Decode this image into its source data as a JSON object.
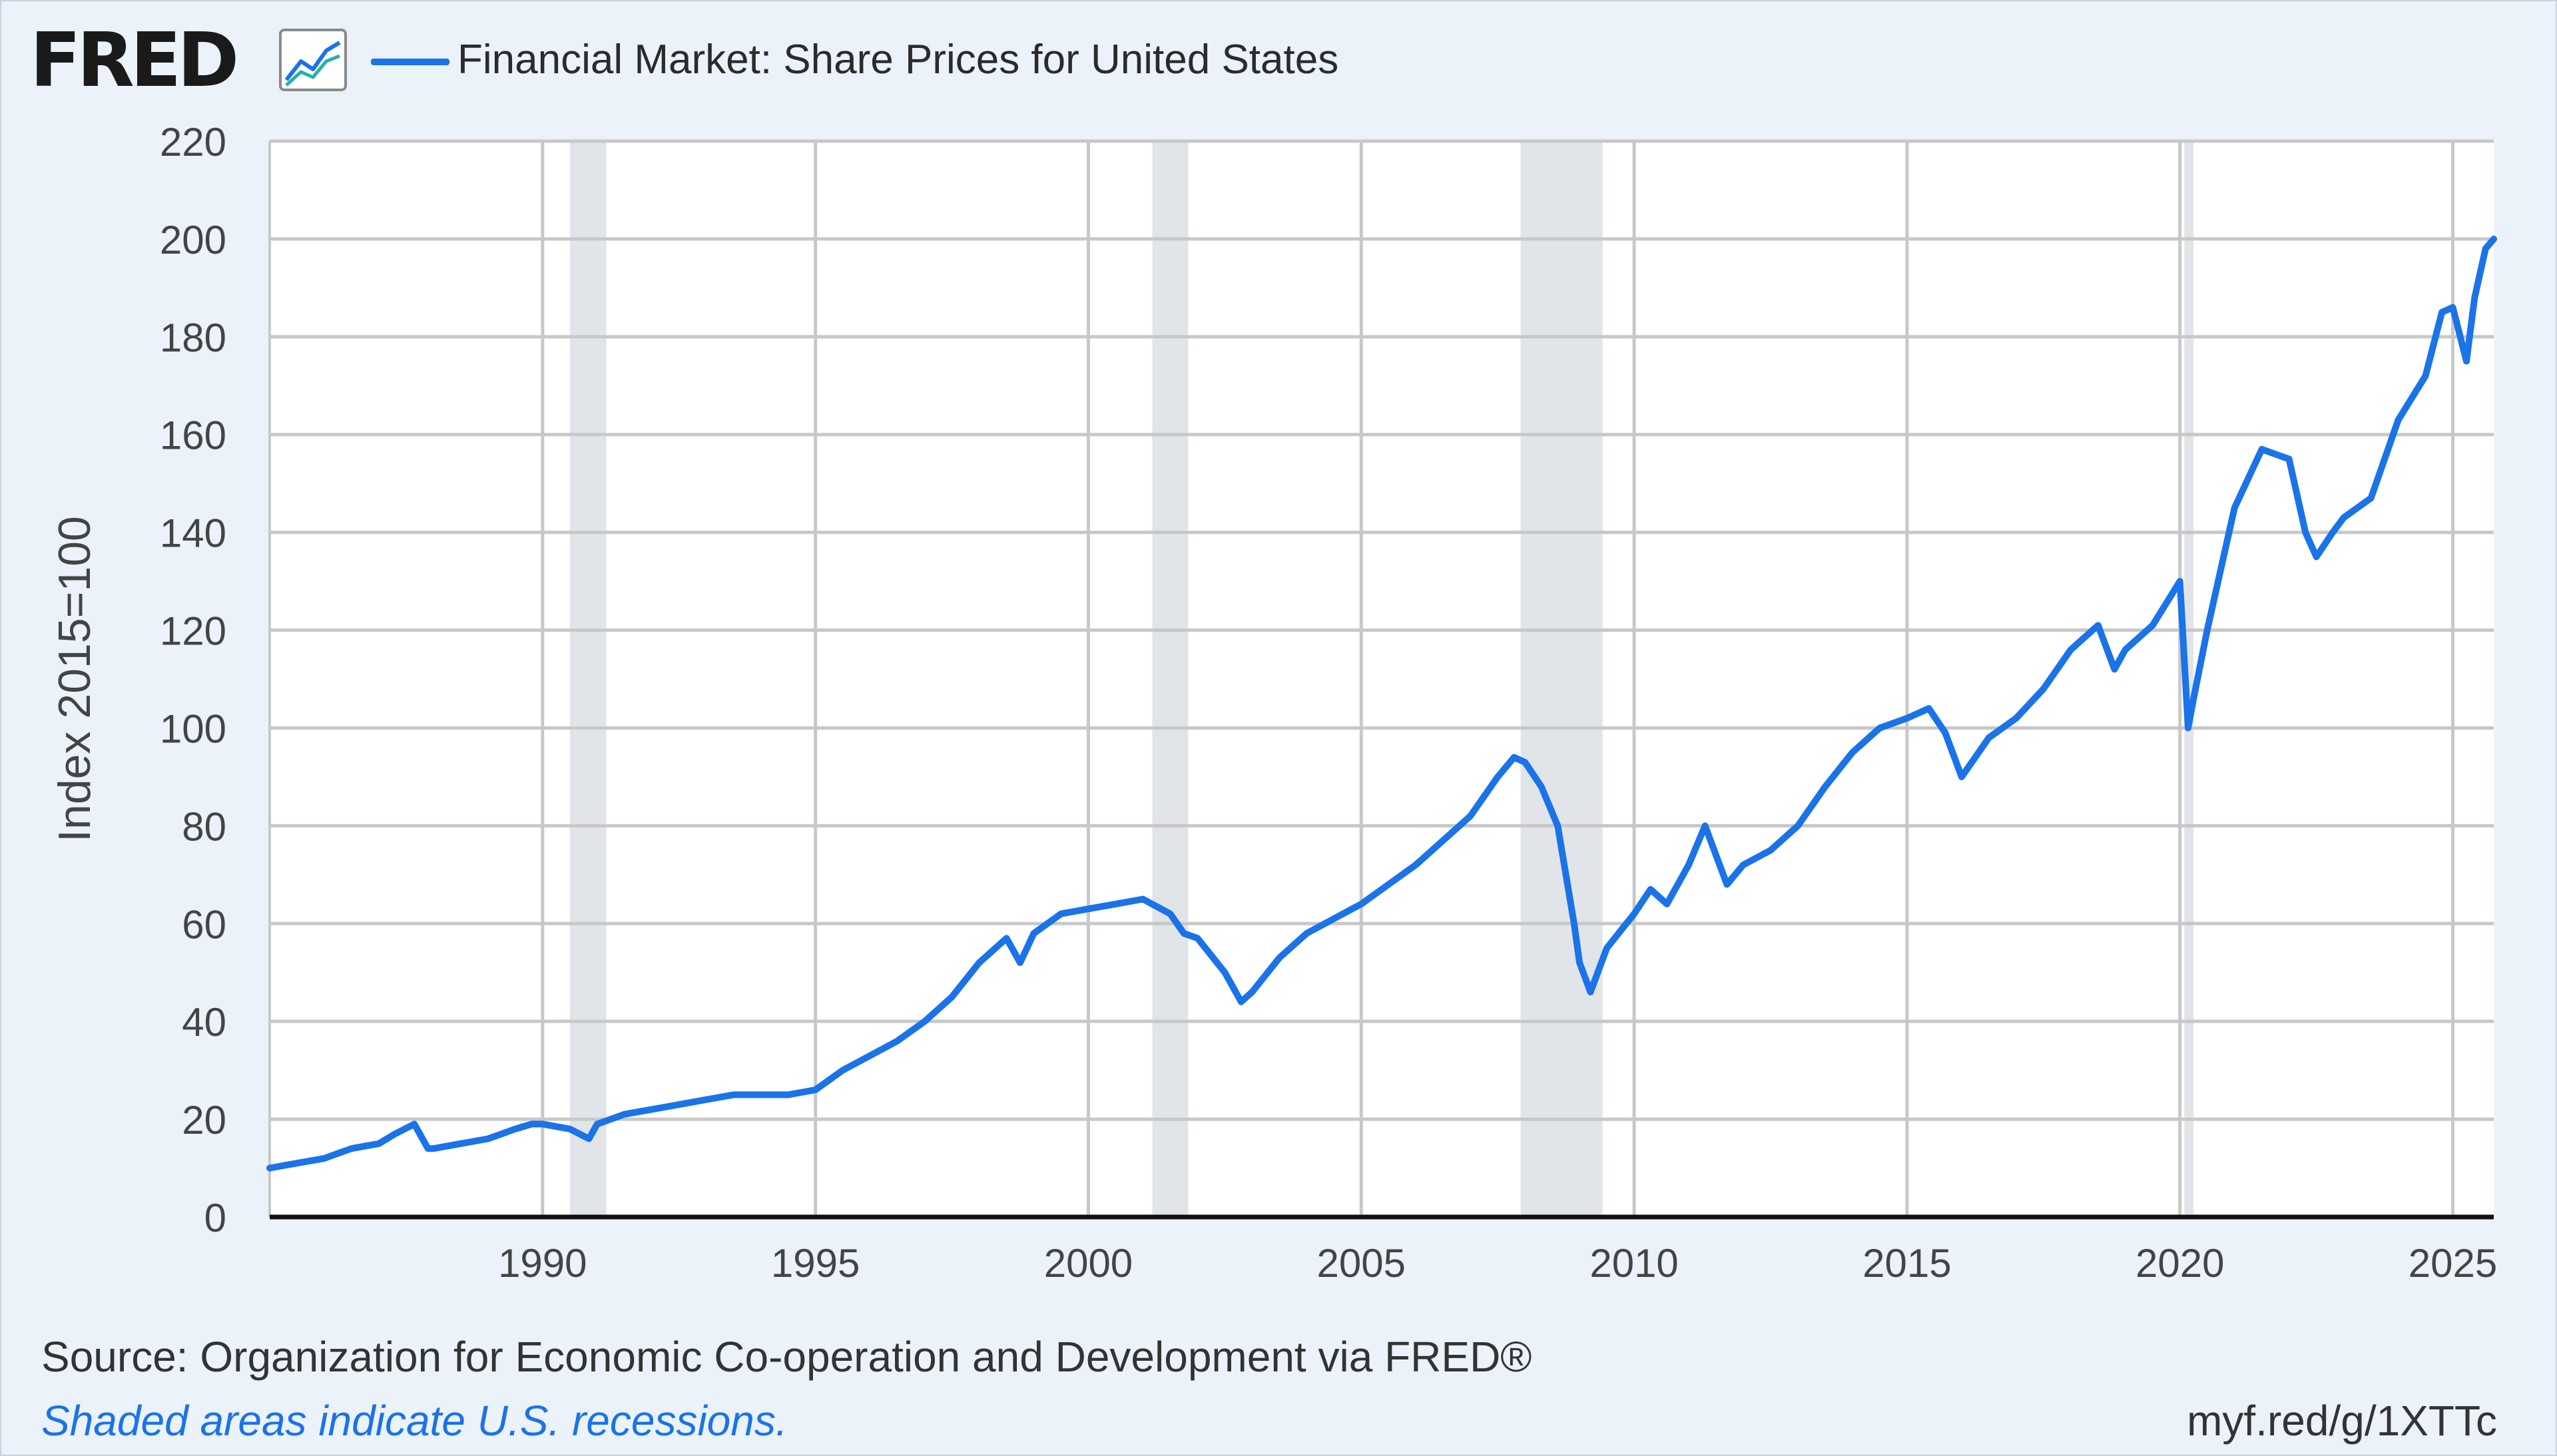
{
  "header": {
    "logo_text": "FRED",
    "logo_icon": "trend-line-chart-icon",
    "series_label": "Financial Market: Share Prices for United States"
  },
  "colors": {
    "series": "#1a73e8",
    "recession_shade": "#e1e5ea",
    "grid": "#c8c8c8",
    "background": "#ebf2fa",
    "plot_background": "#ffffff"
  },
  "footer": {
    "source": "Source: Organization for Economic Co-operation and Development via FRED®",
    "note": "Shaded areas indicate U.S. recessions.",
    "short_url": "myf.red/g/1XTTc"
  },
  "chart_data": {
    "type": "line",
    "title": "",
    "xlabel": "",
    "ylabel": "Index 2015=100",
    "xlim": [
      1985.0,
      2025.75
    ],
    "ylim": [
      0,
      220
    ],
    "yticks": [
      0,
      20,
      40,
      60,
      80,
      100,
      120,
      140,
      160,
      180,
      200,
      220
    ],
    "xticks": [
      1990,
      1995,
      2000,
      2005,
      2010,
      2015,
      2020,
      2025
    ],
    "grid": true,
    "legend_position": "top-left",
    "recessions": [
      [
        1990.5,
        1991.17
      ],
      [
        2001.17,
        2001.83
      ],
      [
        2007.92,
        2009.42
      ],
      [
        2020.08,
        2020.25
      ]
    ],
    "series": [
      {
        "name": "Financial Market: Share Prices for United States",
        "x": [
          1985.0,
          1985.5,
          1986.0,
          1986.5,
          1987.0,
          1987.3,
          1987.65,
          1987.9,
          1988.0,
          1988.5,
          1989.0,
          1989.5,
          1989.8,
          1990.0,
          1990.5,
          1990.85,
          1991.0,
          1991.5,
          1992.0,
          1992.5,
          1993.0,
          1993.5,
          1994.0,
          1994.5,
          1995.0,
          1995.5,
          1996.0,
          1996.5,
          1997.0,
          1997.5,
          1998.0,
          1998.5,
          1998.75,
          1999.0,
          1999.5,
          2000.0,
          2000.5,
          2001.0,
          2001.5,
          2001.75,
          2002.0,
          2002.5,
          2002.8,
          2003.0,
          2003.5,
          2004.0,
          2004.5,
          2005.0,
          2005.5,
          2006.0,
          2006.5,
          2007.0,
          2007.5,
          2007.8,
          2008.0,
          2008.3,
          2008.6,
          2008.9,
          2009.0,
          2009.2,
          2009.5,
          2010.0,
          2010.3,
          2010.6,
          2011.0,
          2011.3,
          2011.7,
          2012.0,
          2012.5,
          2013.0,
          2013.5,
          2014.0,
          2014.5,
          2015.0,
          2015.4,
          2015.7,
          2016.0,
          2016.5,
          2017.0,
          2017.5,
          2018.0,
          2018.5,
          2018.8,
          2019.0,
          2019.5,
          2020.0,
          2020.15,
          2020.25,
          2020.5,
          2021.0,
          2021.5,
          2022.0,
          2022.3,
          2022.5,
          2022.8,
          2023.0,
          2023.5,
          2024.0,
          2024.5,
          2024.8,
          2025.0,
          2025.25,
          2025.4,
          2025.6,
          2025.75
        ],
        "values": [
          10,
          11,
          12,
          14,
          15,
          17,
          19,
          14,
          14,
          15,
          16,
          18,
          19,
          19,
          18,
          16,
          19,
          21,
          22,
          23,
          24,
          25,
          25,
          25,
          26,
          30,
          33,
          36,
          40,
          45,
          52,
          57,
          52,
          58,
          62,
          63,
          64,
          65,
          62,
          58,
          57,
          50,
          44,
          46,
          53,
          58,
          61,
          64,
          68,
          72,
          77,
          82,
          90,
          94,
          93,
          88,
          80,
          60,
          52,
          46,
          55,
          62,
          67,
          64,
          72,
          80,
          68,
          72,
          75,
          80,
          88,
          95,
          100,
          102,
          104,
          99,
          90,
          98,
          102,
          108,
          116,
          121,
          112,
          116,
          121,
          130,
          100,
          106,
          120,
          145,
          157,
          155,
          140,
          135,
          140,
          143,
          147,
          163,
          172,
          185,
          186,
          175,
          188,
          198,
          200
        ]
      }
    ]
  }
}
